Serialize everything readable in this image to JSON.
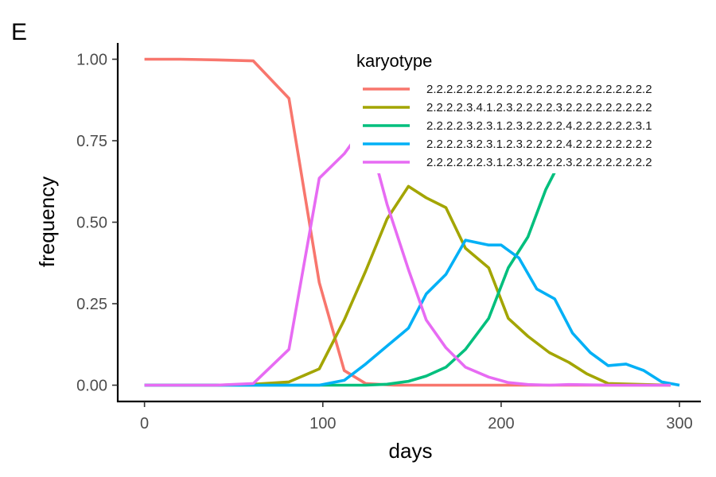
{
  "panel_label": "E",
  "chart_data": {
    "type": "line",
    "title": "",
    "xlabel": "days",
    "ylabel": "frequency",
    "xlim": [
      -15,
      312
    ],
    "ylim": [
      -0.05,
      1.05
    ],
    "x_ticks": [
      0,
      100,
      200,
      300
    ],
    "x_tick_labels": [
      "0",
      "100",
      "200",
      "300"
    ],
    "y_ticks": [
      0,
      0.25,
      0.5,
      0.75,
      1.0
    ],
    "y_tick_labels": [
      "0.00",
      "0.25",
      "0.50",
      "0.75",
      "1.00"
    ],
    "grid": false,
    "legend": {
      "title": "karyotype",
      "placement": "top-right"
    },
    "series": [
      {
        "name": "2.2.2.2.2.2.2.2.2.2.2.2.2.2.2.2.2.2.2.2.2.2.2",
        "color": "#F8766D",
        "x": [
          0,
          20,
          40,
          61,
          81,
          98,
          112,
          124,
          140,
          160,
          200,
          240,
          295
        ],
        "y": [
          1.0,
          1.0,
          0.998,
          0.995,
          0.88,
          0.315,
          0.045,
          0.005,
          0.0,
          0.0,
          0.0,
          0.0,
          0.0
        ]
      },
      {
        "name": "2.2.2.2.3.4.1.2.3.2.2.2.2.3.2.2.2.2.2.2.2.2.2",
        "color": "#A3A500",
        "x": [
          0,
          40,
          61,
          81,
          98,
          112,
          124,
          136,
          148,
          158,
          169,
          180,
          193,
          204,
          215,
          227,
          238,
          248,
          260,
          295
        ],
        "y": [
          0.0,
          0.0,
          0.003,
          0.01,
          0.05,
          0.2,
          0.35,
          0.51,
          0.61,
          0.575,
          0.545,
          0.42,
          0.36,
          0.205,
          0.15,
          0.1,
          0.07,
          0.035,
          0.005,
          0.0
        ]
      },
      {
        "name": "2.2.2.2.3.2.3.1.2.3.2.2.2.2.4.2.2.2.2.2.2.3.1",
        "color": "#00BF7D",
        "x": [
          0,
          100,
          124,
          136,
          148,
          158,
          169,
          180,
          193,
          204,
          215,
          225,
          240,
          250,
          258,
          266
        ],
        "y": [
          0.0,
          0.0,
          0.0,
          0.003,
          0.012,
          0.028,
          0.055,
          0.11,
          0.205,
          0.36,
          0.455,
          0.6,
          0.76,
          0.855,
          0.905,
          0.95
        ]
      },
      {
        "name": "2.2.2.2.3.2.3.1.2.3.2.2.2.2.4.2.2.2.2.2.2.2.2",
        "color": "#00B0F6",
        "x": [
          0,
          98,
          112,
          124,
          136,
          148,
          158,
          169,
          180,
          193,
          200,
          210,
          220,
          230,
          240,
          250,
          260,
          270,
          280,
          290,
          300
        ],
        "y": [
          0.0,
          0.0,
          0.015,
          0.065,
          0.12,
          0.175,
          0.28,
          0.34,
          0.445,
          0.43,
          0.43,
          0.39,
          0.295,
          0.265,
          0.16,
          0.1,
          0.06,
          0.065,
          0.045,
          0.01,
          0.0
        ]
      },
      {
        "name": "2.2.2.2.2.2.3.1.2.3.2.2.2.2.3.2.2.2.2.2.2.2.2",
        "color": "#E76BF3",
        "x": [
          0,
          40,
          61,
          81,
          98,
          112,
          124,
          136,
          148,
          158,
          169,
          180,
          193,
          204,
          215,
          227,
          238,
          260,
          295
        ],
        "y": [
          0.0,
          0.0,
          0.005,
          0.11,
          0.635,
          0.71,
          0.8,
          0.555,
          0.355,
          0.2,
          0.115,
          0.055,
          0.025,
          0.008,
          0.002,
          0.0,
          0.002,
          0.0,
          0.0
        ]
      }
    ]
  }
}
